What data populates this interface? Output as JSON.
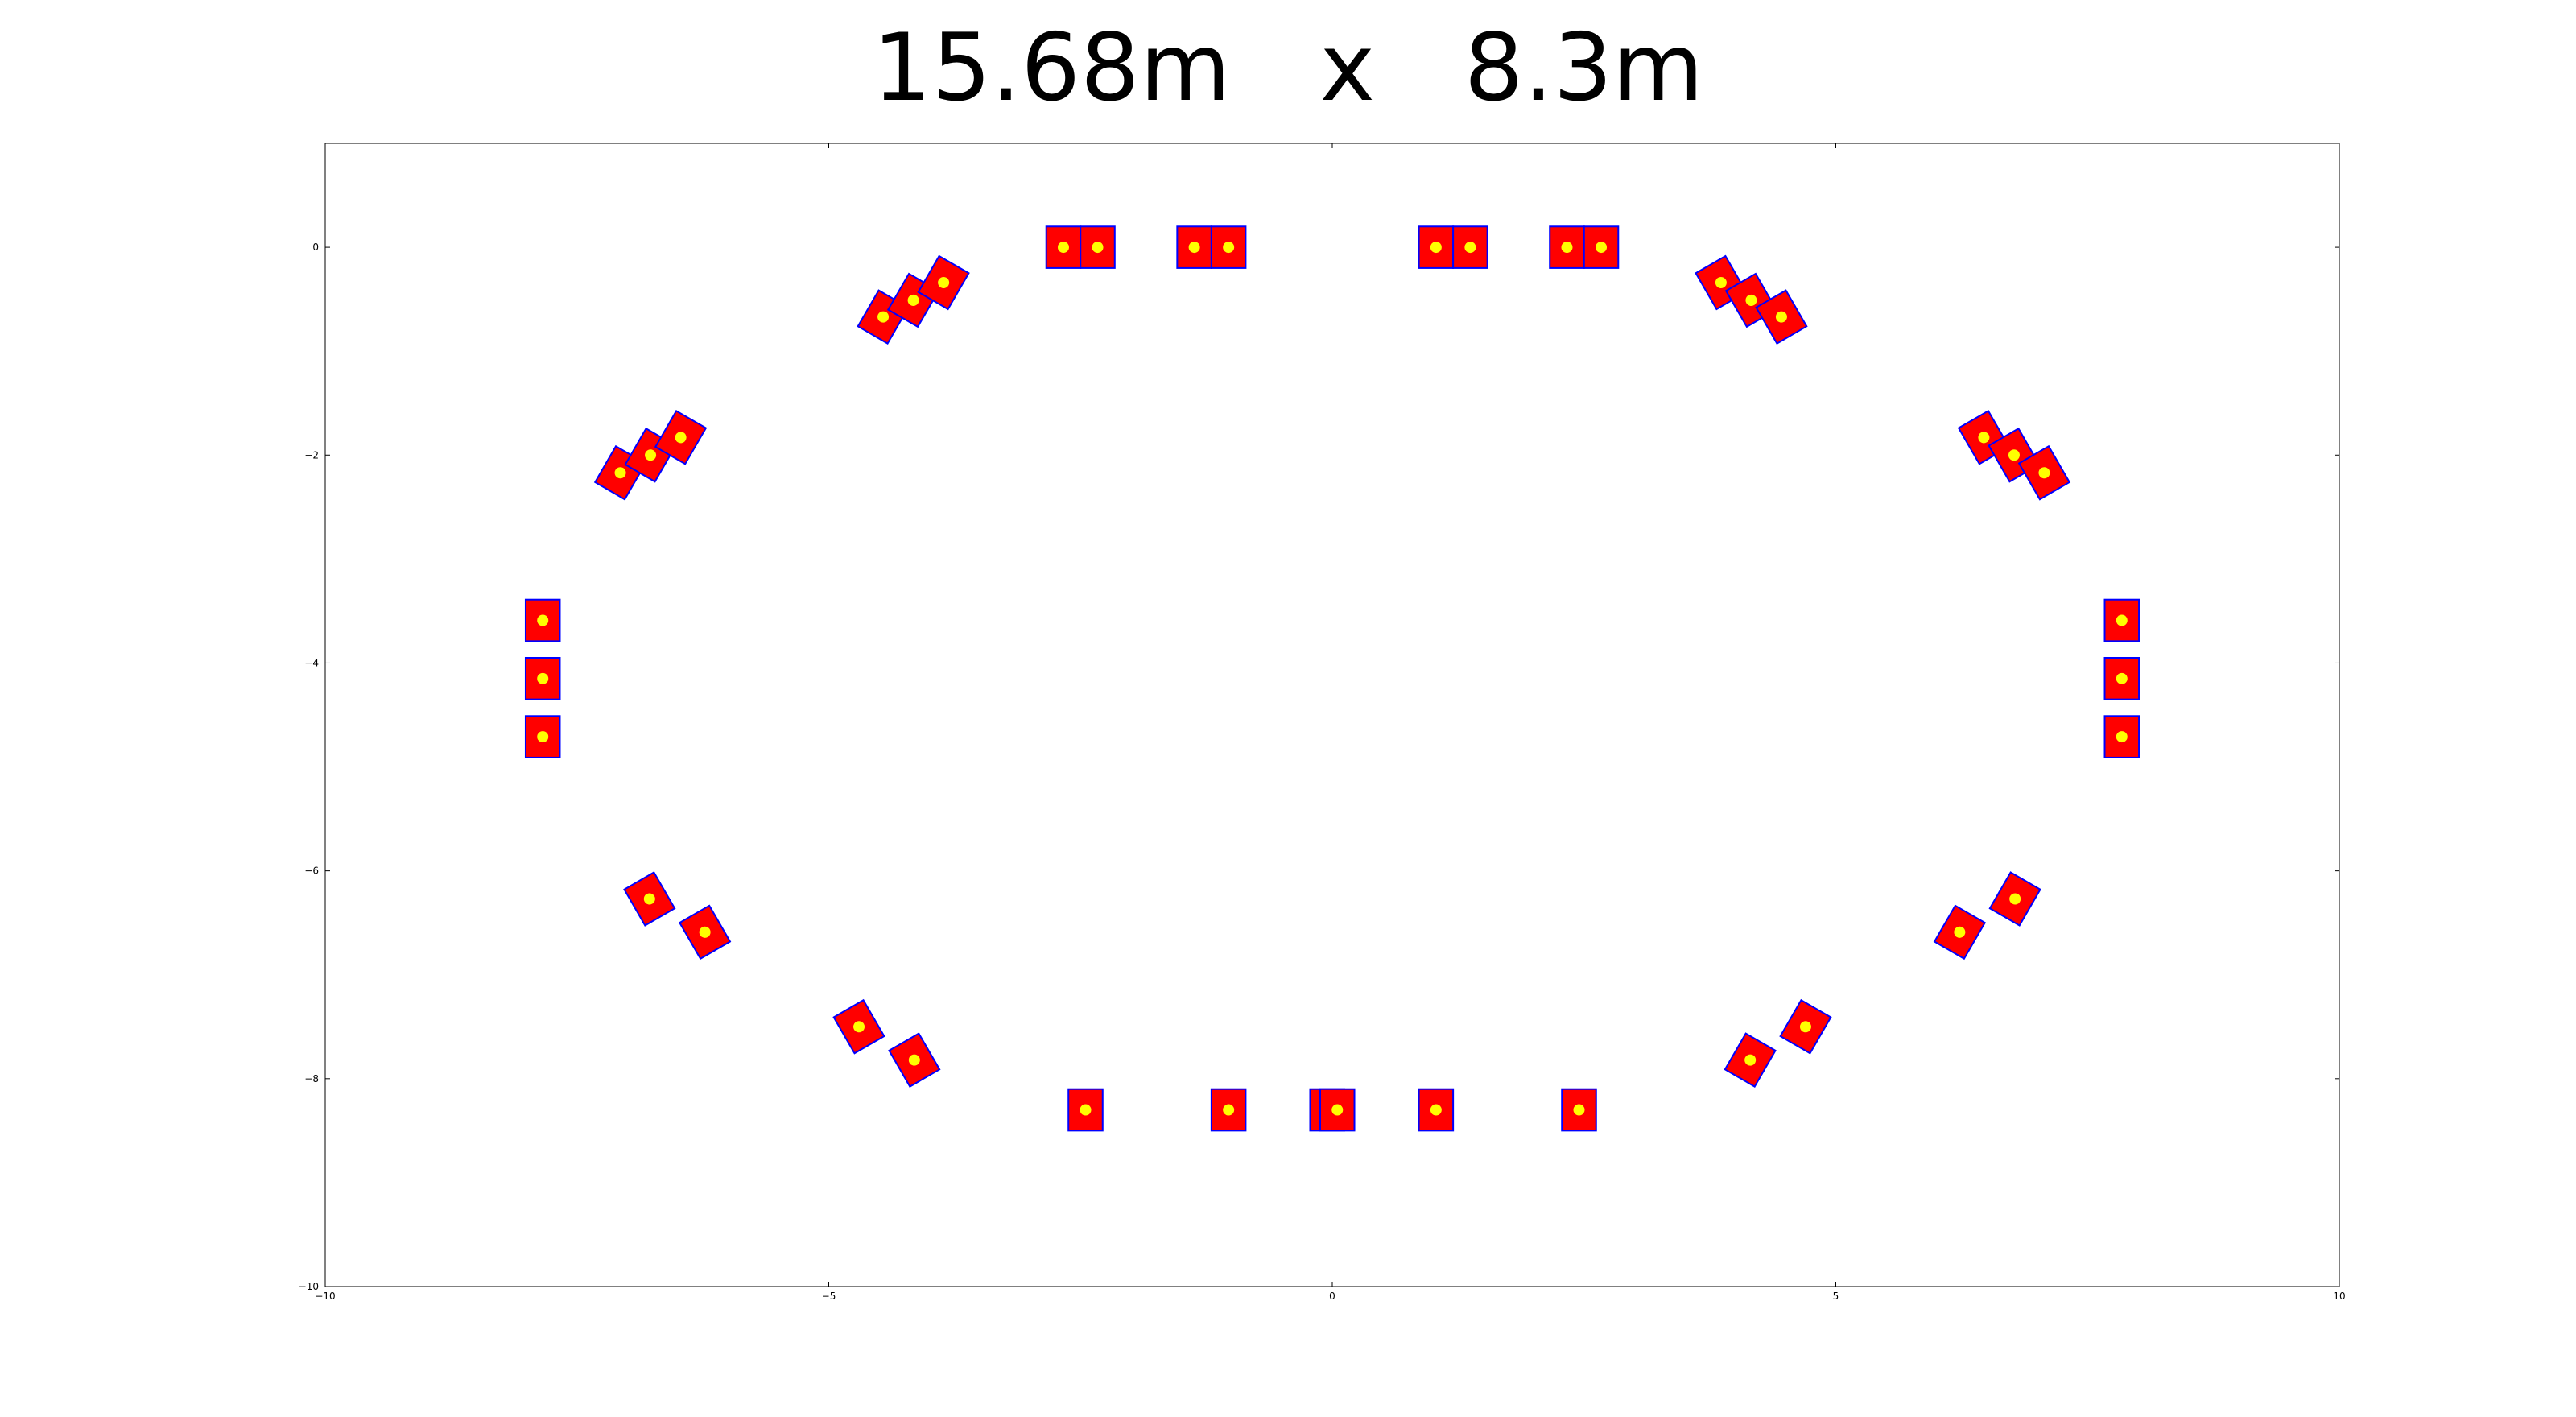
{
  "chart_data": {
    "type": "scatter",
    "title": "15.68m   x   8.3m",
    "xlabel": "",
    "ylabel": "",
    "xlim": [
      -10,
      10
    ],
    "ylim": [
      -10,
      1
    ],
    "grid": false,
    "x_ticks": [
      -10,
      -5,
      0,
      5,
      10
    ],
    "y_ticks": [
      0,
      -2,
      -4,
      -6,
      -8,
      -10
    ],
    "x_tick_labels": [
      "−10",
      "−5",
      "0",
      "5",
      "10"
    ],
    "y_tick_labels": [
      "0",
      "−2",
      "−4",
      "−6",
      "−8",
      "−10"
    ],
    "colors": {
      "box_fill": "#ff0000",
      "box_edge": "#0000ff",
      "point": "#ffff00"
    },
    "points": [
      {
        "x": -2.67,
        "y": 0.0,
        "angle": 0
      },
      {
        "x": -2.33,
        "y": 0.0,
        "angle": 0
      },
      {
        "x": -1.37,
        "y": 0.0,
        "angle": 0
      },
      {
        "x": -1.03,
        "y": 0.0,
        "angle": 0
      },
      {
        "x": 1.03,
        "y": 0.0,
        "angle": 0
      },
      {
        "x": 1.37,
        "y": 0.0,
        "angle": 0
      },
      {
        "x": 2.33,
        "y": 0.0,
        "angle": 0
      },
      {
        "x": 2.67,
        "y": 0.0,
        "angle": 0
      },
      {
        "x": -4.46,
        "y": -0.67,
        "angle": 30
      },
      {
        "x": -4.16,
        "y": -0.51,
        "angle": 30
      },
      {
        "x": -3.86,
        "y": -0.34,
        "angle": 30
      },
      {
        "x": 3.86,
        "y": -0.34,
        "angle": -30
      },
      {
        "x": 4.16,
        "y": -0.51,
        "angle": -30
      },
      {
        "x": 4.46,
        "y": -0.67,
        "angle": -30
      },
      {
        "x": -7.07,
        "y": -2.17,
        "angle": 30
      },
      {
        "x": -6.77,
        "y": -2.0,
        "angle": 30
      },
      {
        "x": -6.47,
        "y": -1.83,
        "angle": 30
      },
      {
        "x": 6.47,
        "y": -1.83,
        "angle": -30
      },
      {
        "x": 6.77,
        "y": -2.0,
        "angle": -30
      },
      {
        "x": 7.07,
        "y": -2.17,
        "angle": -30
      },
      {
        "x": -7.84,
        "y": -3.59,
        "angle": 0
      },
      {
        "x": -7.84,
        "y": -4.15,
        "angle": 0
      },
      {
        "x": -7.84,
        "y": -4.71,
        "angle": 0
      },
      {
        "x": 7.84,
        "y": -3.59,
        "angle": 0
      },
      {
        "x": 7.84,
        "y": -4.15,
        "angle": 0
      },
      {
        "x": 7.84,
        "y": -4.71,
        "angle": 0
      },
      {
        "x": -6.78,
        "y": -6.27,
        "angle": -30
      },
      {
        "x": -6.23,
        "y": -6.59,
        "angle": -30
      },
      {
        "x": 6.23,
        "y": -6.59,
        "angle": 30
      },
      {
        "x": 6.78,
        "y": -6.27,
        "angle": 30
      },
      {
        "x": -4.7,
        "y": -7.5,
        "angle": -30
      },
      {
        "x": -4.15,
        "y": -7.82,
        "angle": -30
      },
      {
        "x": 4.15,
        "y": -7.82,
        "angle": 30
      },
      {
        "x": 4.7,
        "y": -7.5,
        "angle": 30
      },
      {
        "x": -2.45,
        "y": -8.3,
        "angle": 0
      },
      {
        "x": -1.03,
        "y": -8.3,
        "angle": 0
      },
      {
        "x": -0.05,
        "y": -8.3,
        "angle": 0
      },
      {
        "x": 0.05,
        "y": -8.3,
        "angle": 0
      },
      {
        "x": 1.03,
        "y": -8.3,
        "angle": 0
      },
      {
        "x": 2.45,
        "y": -8.3,
        "angle": 0
      }
    ]
  }
}
